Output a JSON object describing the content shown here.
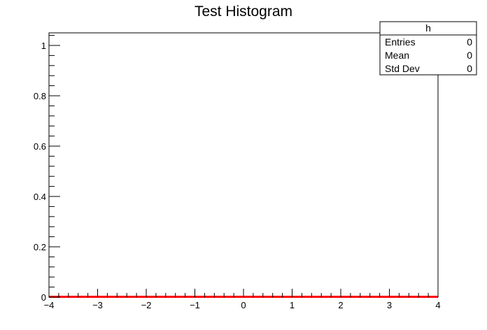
{
  "chart_data": {
    "type": "bar",
    "title": "Test Histogram",
    "xlabel": "",
    "ylabel": "",
    "xlim": [
      -4,
      4
    ],
    "ylim": [
      0,
      1.05
    ],
    "x_ticks": [
      "−4",
      "−3",
      "−2",
      "−1",
      "0",
      "1",
      "2",
      "3",
      "4"
    ],
    "y_ticks": [
      "0",
      "0.2",
      "0.4",
      "0.6",
      "0.8",
      "1"
    ],
    "series": [
      {
        "line_color": "#ff0000",
        "bins": 100,
        "values_all_zero": true
      }
    ],
    "grid": false,
    "stats_box": {
      "name": "h",
      "entries_label": "Entries",
      "entries_value": "0",
      "mean_label": "Mean",
      "mean_value": "0",
      "stddev_label": "Std Dev",
      "stddev_value": "0",
      "placement": "top-right"
    }
  }
}
